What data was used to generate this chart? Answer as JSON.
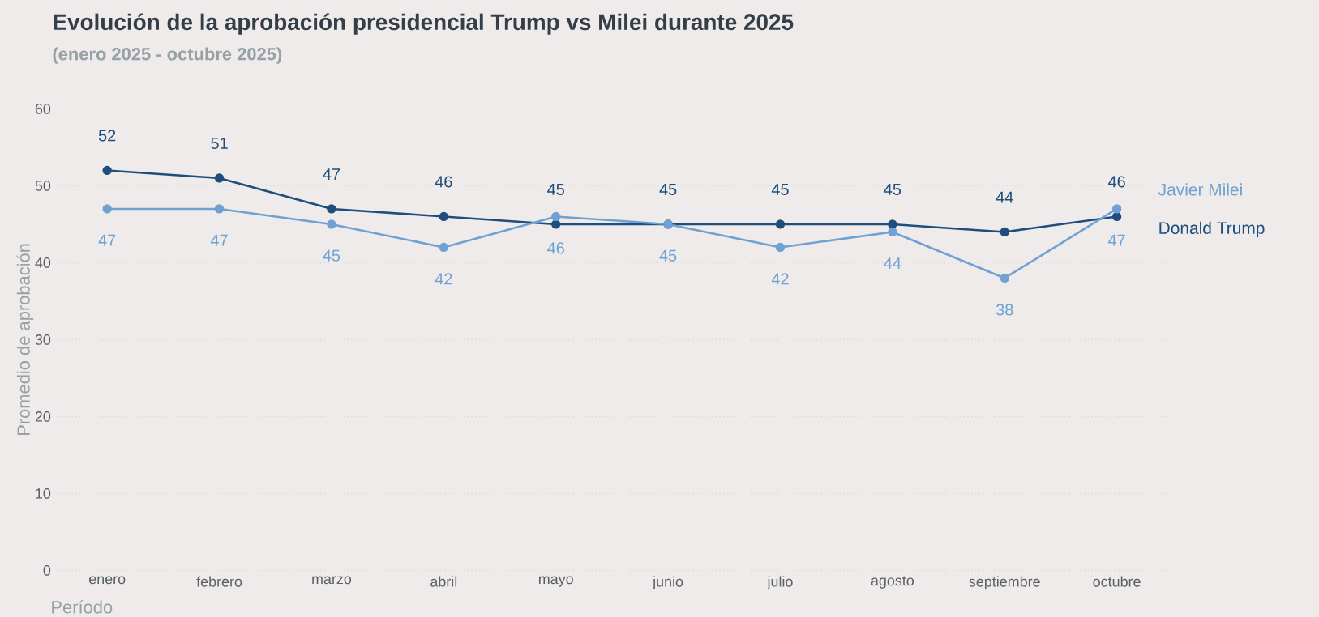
{
  "chart_data": {
    "type": "line",
    "title": "Evolución de la aprobación presidencial Trump vs Milei durante 2025",
    "subtitle": "(enero 2025 - octubre 2025)",
    "xlabel": "Período",
    "ylabel": "Promedio de aprobación",
    "categories": [
      "enero",
      "febrero",
      "marzo",
      "abril",
      "mayo",
      "junio",
      "julio",
      "agosto",
      "septiembre",
      "octubre"
    ],
    "series": [
      {
        "name": "Donald Trump",
        "color": "#1f4e7c",
        "values": [
          52,
          51,
          47,
          46,
          45,
          45,
          45,
          45,
          44,
          46
        ]
      },
      {
        "name": "Javier Milei",
        "color": "#6fa1d4",
        "values": [
          47,
          47,
          45,
          42,
          46,
          45,
          42,
          44,
          38,
          47
        ]
      }
    ],
    "ylim": [
      0,
      60
    ],
    "yticks": [
      0,
      10,
      20,
      30,
      40,
      50,
      60
    ],
    "grid": "y",
    "marker": "circle",
    "line_style": "solid",
    "data_labels": true
  }
}
